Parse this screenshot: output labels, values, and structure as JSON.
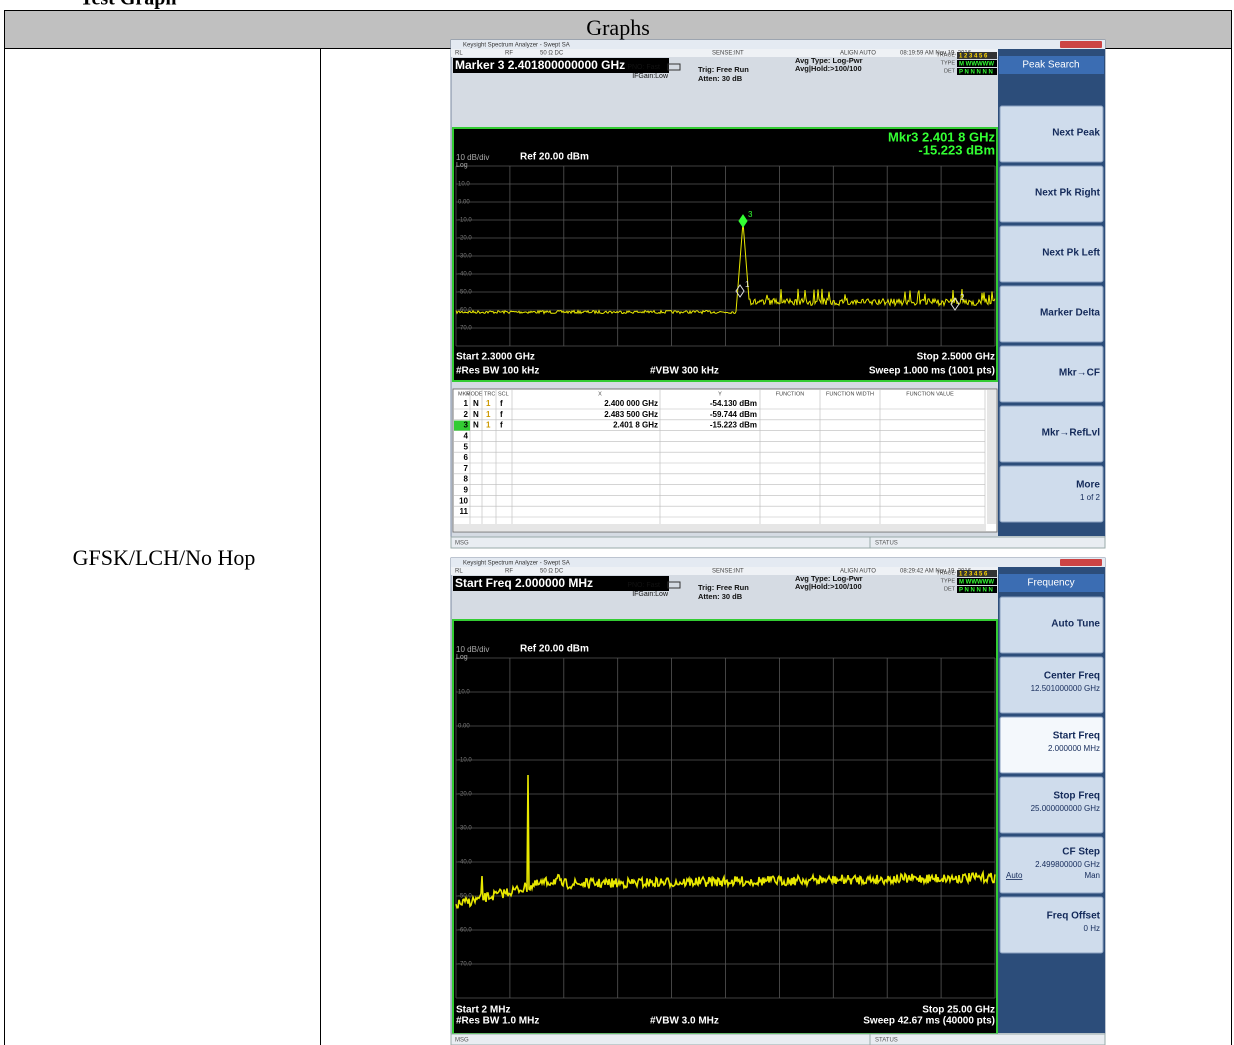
{
  "header": {
    "title": "Test Graph"
  },
  "table": {
    "header": "Graphs",
    "row_label": "GFSK/LCH/No Hop"
  },
  "screens": [
    {
      "window_title": "Keysight Spectrum Analyzer - Swept SA",
      "status": [
        "RL",
        "RF",
        "50 Ω  DC",
        "SENSE:INT",
        "ALIGN AUTO",
        "08:19:59 AM Nov 19, 2016"
      ],
      "active_function": "Marker 3 2.401800000000 GHz",
      "pno": "PNO: Fast",
      "ifgain": "IFGain:Low",
      "trig": "Trig: Free Run",
      "atten": "Atten: 30 dB",
      "avg_type": "Avg Type: Log-Pwr",
      "avg_hold": "Avg|Hold:>100/100",
      "trace_labels": [
        "TRACE",
        "TYPE",
        "DET"
      ],
      "trace_rows": [
        "1 2 3 4 5 6",
        "M WWWWW",
        "P N N N N N"
      ],
      "menu_title": "Peak Search",
      "softkeys": [
        {
          "label": "Next Peak"
        },
        {
          "label": "Next Pk Right"
        },
        {
          "label": "Next Pk Left"
        },
        {
          "label": "Marker Delta"
        },
        {
          "label": "Mkr→CF"
        },
        {
          "label": "Mkr→RefLvl"
        },
        {
          "label": "More",
          "sub": "1 of 2"
        }
      ],
      "marker_readout": [
        "Mkr3 2.401 8 GHz",
        "-15.223 dBm"
      ],
      "scale": "10 dB/div",
      "log": "Log",
      "ref": "Ref 20.00 dBm",
      "y_labels": [
        "10.0",
        "0.00",
        "-10.0",
        "-20.0",
        "-30.0",
        "-40.0",
        "-50.0",
        "-60.0",
        "-70.0"
      ],
      "plot_markers": [
        "1",
        "2",
        "3"
      ],
      "start": "Start 2.3000 GHz",
      "stop": "Stop 2.5000 GHz",
      "res_bw": "#Res BW 100 kHz",
      "vbw": "#VBW 300 kHz",
      "sweep": "Sweep  1.000 ms (1001 pts)",
      "marker_table": {
        "headers": [
          "MKR",
          "MODE",
          "TRC",
          "SCL",
          "X",
          "Y",
          "FUNCTION",
          "FUNCTION WIDTH",
          "FUNCTION VALUE"
        ],
        "rows": [
          [
            "1",
            "N",
            "1",
            "f",
            "2.400 000 GHz",
            "-54.130 dBm"
          ],
          [
            "2",
            "N",
            "1",
            "f",
            "2.483 500 GHz",
            "-59.744 dBm"
          ],
          [
            "3",
            "N",
            "1",
            "f",
            "2.401 8 GHz",
            "-15.223 dBm"
          ],
          [
            "4"
          ],
          [
            "5"
          ],
          [
            "6"
          ],
          [
            "7"
          ],
          [
            "8"
          ],
          [
            "9"
          ],
          [
            "10"
          ],
          [
            "11"
          ]
        ]
      },
      "msg": "MSG",
      "status_label": "STATUS"
    },
    {
      "window_title": "Keysight Spectrum Analyzer - Swept SA",
      "status": [
        "RL",
        "RF",
        "50 Ω  DC",
        "SENSE:INT",
        "ALIGN AUTO",
        "08:29:42 AM Nov 19, 2016"
      ],
      "active_function": "Start Freq 2.000000 MHz",
      "pno": "PNO: Fast",
      "ifgain": "IFGain:Low",
      "trig": "Trig: Free Run",
      "atten": "Atten: 30 dB",
      "avg_type": "Avg Type: Log-Pwr",
      "avg_hold": "Avg|Hold:>100/100",
      "trace_labels": [
        "TRACE",
        "TYPE",
        "DET"
      ],
      "trace_rows": [
        "1 2 3 4 5 6",
        "M WWWWW",
        "P N N N N N"
      ],
      "menu_title": "Frequency",
      "softkeys": [
        {
          "label": "Auto Tune"
        },
        {
          "label": "Center Freq",
          "sub": "12.501000000 GHz"
        },
        {
          "label": "Start Freq",
          "sub": "2.000000 MHz"
        },
        {
          "label": "Stop Freq",
          "sub": "25.000000000 GHz"
        },
        {
          "label": "CF Step",
          "sub": "2.499800000 GHz",
          "opts": [
            "Auto",
            "Man"
          ]
        },
        {
          "label": "Freq Offset",
          "sub": "0 Hz"
        }
      ],
      "scale": "10 dB/div",
      "log": "Log",
      "ref": "Ref 20.00 dBm",
      "y_labels": [
        "10.0",
        "0.00",
        "-10.0",
        "-20.0",
        "-30.0",
        "-40.0",
        "-50.0",
        "-60.0",
        "-70.0"
      ],
      "start": "Start 2 MHz",
      "stop": "Stop 25.00 GHz",
      "res_bw": "#Res BW 1.0 MHz",
      "vbw": "#VBW 3.0 MHz",
      "sweep": "Sweep  42.67 ms (40000 pts)",
      "msg": "MSG",
      "status_label": "STATUS"
    }
  ]
}
